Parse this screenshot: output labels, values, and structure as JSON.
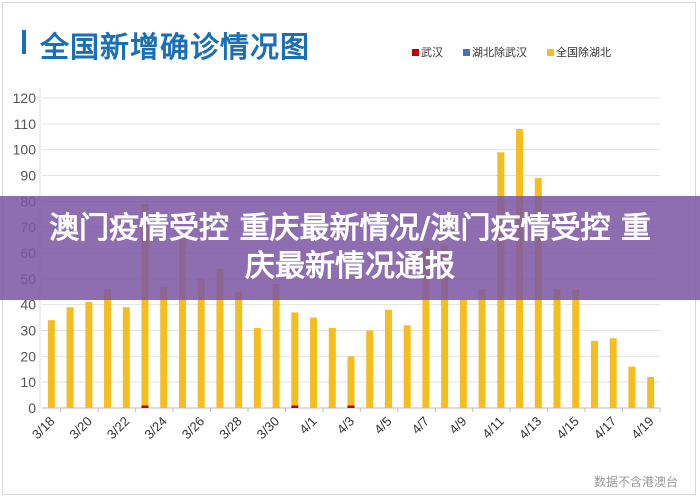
{
  "chart_data": {
    "type": "bar",
    "stacked": true,
    "title": "全国新增确诊情况图",
    "xlabel": "",
    "ylabel": "",
    "ylim": [
      0,
      120
    ],
    "yticks": [
      0,
      10,
      20,
      30,
      40,
      50,
      60,
      70,
      80,
      90,
      100,
      110,
      120
    ],
    "grid": true,
    "legend_position": "top-right",
    "categories": [
      "3/18",
      "3/19",
      "3/20",
      "3/21",
      "3/22",
      "3/23",
      "3/24",
      "3/25",
      "3/26",
      "3/27",
      "3/28",
      "3/29",
      "3/30",
      "3/31",
      "4/1",
      "4/2",
      "4/3",
      "4/4",
      "4/5",
      "4/6",
      "4/7",
      "4/8",
      "4/9",
      "4/10",
      "4/11",
      "4/12",
      "4/13",
      "4/14",
      "4/15",
      "4/16",
      "4/17",
      "4/18",
      "4/19"
    ],
    "tick_labels": [
      "3/18",
      "3/20",
      "3/22",
      "3/24",
      "3/26",
      "3/28",
      "3/30",
      "4/1",
      "4/3",
      "4/5",
      "4/7",
      "4/9",
      "4/11",
      "4/13",
      "4/15",
      "4/17",
      "4/19"
    ],
    "series": [
      {
        "name": "武汉",
        "color": "#c00000",
        "values": [
          0,
          0,
          0,
          0,
          0,
          1,
          0,
          0,
          0,
          0,
          0,
          0,
          0,
          1,
          0,
          0,
          1,
          0,
          0,
          0,
          0,
          0,
          0,
          0,
          0,
          0,
          0,
          0,
          0,
          0,
          0,
          0,
          0
        ]
      },
      {
        "name": "湖北除武汉",
        "color": "#4472c4",
        "values": [
          0,
          0,
          0,
          0,
          0,
          0,
          0,
          0,
          0,
          0,
          0,
          0,
          0,
          0,
          0,
          0,
          0,
          0,
          0,
          0,
          0,
          0,
          0,
          0,
          0,
          0,
          0,
          0,
          0,
          0,
          0,
          0,
          0
        ]
      },
      {
        "name": "全国除湖北",
        "color": "#f5bd1f",
        "values": [
          34,
          39,
          41,
          46,
          39,
          78,
          47,
          66,
          50,
          54,
          45,
          31,
          48,
          36,
          35,
          31,
          19,
          30,
          38,
          32,
          62,
          63,
          42,
          46,
          99,
          108,
          89,
          46,
          46,
          26,
          27,
          16,
          12
        ]
      }
    ]
  },
  "banner": {
    "text": "澳门疫情受控 重庆最新情况/澳门疫情受控 重庆最新情况通报"
  },
  "source_note": "数据不含港澳台"
}
